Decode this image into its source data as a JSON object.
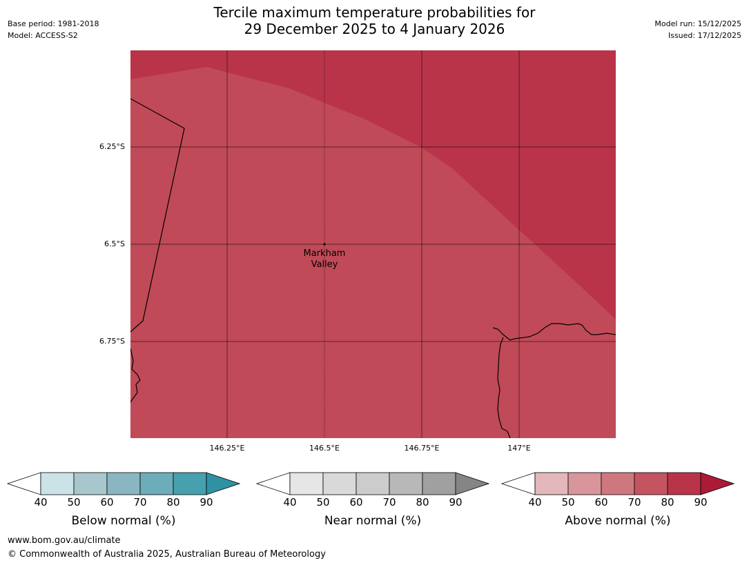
{
  "header": {
    "title_line1": "Tercile maximum temperature probabilities for",
    "title_line2": "29 December 2025 to 4 January 2026",
    "base_period": "Base period: 1981-2018",
    "model": "Model: ACCESS-S2",
    "model_run": "Model run: 15/12/2025",
    "issued": "Issued: 17/12/2025"
  },
  "map": {
    "lat_labels": [
      "6.25°S",
      "6.5°S",
      "6.75°S"
    ],
    "lon_labels": [
      "146.25°E",
      "146.5°E",
      "146.75°E",
      "147°E"
    ],
    "place": {
      "name_line1": "Markham",
      "name_line2": "Valley"
    },
    "colors": {
      "above_70_80": "#c04a57",
      "above_80_90": "#b93449",
      "grid": "#000000",
      "coast": "#000000"
    }
  },
  "legends": [
    {
      "title": "Below normal (%)",
      "ticks": [
        "40",
        "50",
        "60",
        "70",
        "80",
        "90"
      ],
      "colors": [
        "#ffffff",
        "#cbe3e7",
        "#a8c7cc",
        "#8ab6c2",
        "#6dadbb",
        "#46a0ae",
        "#2e92a2"
      ]
    },
    {
      "title": "Near normal (%)",
      "ticks": [
        "40",
        "50",
        "60",
        "70",
        "80",
        "90"
      ],
      "colors": [
        "#ffffff",
        "#e6e6e6",
        "#d9d9d9",
        "#cccccc",
        "#b8b8b8",
        "#a0a0a0",
        "#858585"
      ]
    },
    {
      "title": "Above normal (%)",
      "ticks": [
        "40",
        "50",
        "60",
        "70",
        "80",
        "90"
      ],
      "colors": [
        "#ffffff",
        "#e3b7bc",
        "#d8959c",
        "#cf777f",
        "#c4545f",
        "#b93449",
        "#ad1a38"
      ]
    }
  ],
  "footer": {
    "url": "www.bom.gov.au/climate",
    "copyright": "© Commonwealth of Australia 2025, Australian Bureau of Meteorology"
  }
}
